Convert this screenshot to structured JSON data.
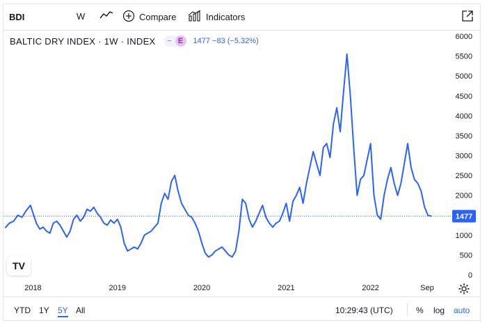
{
  "toolbar": {
    "symbol": "BDI",
    "interval": "W",
    "chart_type_icon": "line-chart-icon",
    "compare_label": "Compare",
    "indicators_label": "Indicators",
    "fullscreen_icon": "open-external-icon"
  },
  "legend": {
    "name": "BALTIC DRY INDEX · 1W · INDEX",
    "dash": "−",
    "badge": "E",
    "values": "1477  −83 (−5.32%)"
  },
  "chart_data": {
    "type": "line",
    "title": "",
    "xlabel": "",
    "ylabel": "",
    "ylim": [
      0,
      6000
    ],
    "y_ticks": [
      "0",
      "500",
      "1000",
      "1500",
      "2000",
      "2500",
      "3000",
      "3500",
      "4000",
      "4500",
      "5000",
      "5500",
      "6000"
    ],
    "x_ticks": [
      "2018",
      "2019",
      "2020",
      "2021",
      "2022",
      "Sep"
    ],
    "last_value_label": "1477",
    "last_value": 1477,
    "line_color": "#2962ff",
    "series": [
      {
        "x": [
          2017.67,
          2017.72,
          2017.77,
          2017.82,
          2017.87,
          2017.92,
          2017.97,
          2018.0,
          2018.04,
          2018.08,
          2018.12,
          2018.16,
          2018.2,
          2018.24,
          2018.28,
          2018.32,
          2018.36,
          2018.4,
          2018.44,
          2018.48,
          2018.52,
          2018.56,
          2018.6,
          2018.64,
          2018.68,
          2018.72,
          2018.76,
          2018.8,
          2018.84,
          2018.88,
          2018.92,
          2018.96,
          2019.0,
          2019.04,
          2019.08,
          2019.12,
          2019.16,
          2019.2,
          2019.24,
          2019.28,
          2019.32,
          2019.36,
          2019.4,
          2019.44,
          2019.48,
          2019.52,
          2019.56,
          2019.6,
          2019.64,
          2019.68,
          2019.72,
          2019.76,
          2019.8,
          2019.84,
          2019.88,
          2019.92,
          2019.96,
          2020.0,
          2020.04,
          2020.08,
          2020.12,
          2020.16,
          2020.2,
          2020.24,
          2020.28,
          2020.32,
          2020.36,
          2020.4,
          2020.44,
          2020.48,
          2020.52,
          2020.56,
          2020.6,
          2020.64,
          2020.68,
          2020.72,
          2020.76,
          2020.8,
          2020.84,
          2020.88,
          2020.92,
          2020.96,
          2021.0,
          2021.04,
          2021.08,
          2021.12,
          2021.16,
          2021.2,
          2021.24,
          2021.28,
          2021.32,
          2021.36,
          2021.4,
          2021.44,
          2021.48,
          2021.52,
          2021.56,
          2021.6,
          2021.64,
          2021.68,
          2021.72,
          2021.76,
          2021.8,
          2021.84,
          2021.88,
          2021.92,
          2021.96,
          2022.0,
          2022.04,
          2022.08,
          2022.12,
          2022.16,
          2022.2,
          2022.24,
          2022.28,
          2022.32,
          2022.36,
          2022.4,
          2022.44,
          2022.48,
          2022.52,
          2022.56,
          2022.6,
          2022.64,
          2022.68,
          2022.72
        ],
        "values": [
          1180,
          1300,
          1350,
          1500,
          1450,
          1620,
          1750,
          1550,
          1300,
          1150,
          1200,
          1100,
          1050,
          1300,
          1350,
          1250,
          1100,
          950,
          1100,
          1400,
          1500,
          1350,
          1450,
          1650,
          1600,
          1700,
          1550,
          1450,
          1300,
          1250,
          1380,
          1300,
          1400,
          1200,
          800,
          600,
          650,
          700,
          650,
          800,
          1000,
          1050,
          1100,
          1200,
          1300,
          1800,
          2050,
          1900,
          2350,
          2500,
          2100,
          1800,
          1650,
          1500,
          1450,
          1300,
          1100,
          800,
          550,
          450,
          500,
          600,
          650,
          700,
          600,
          500,
          450,
          600,
          1100,
          1900,
          1800,
          1400,
          1200,
          1350,
          1550,
          1750,
          1450,
          1300,
          1200,
          1300,
          1350,
          1550,
          1800,
          1350,
          1850,
          2000,
          2200,
          1800,
          2300,
          2700,
          3100,
          2800,
          2500,
          3200,
          3300,
          2950,
          3800,
          4200,
          3600,
          4600,
          5550,
          4500,
          3200,
          2000,
          2400,
          2500,
          2900,
          3300,
          2000,
          1500,
          1400,
          2000,
          2400,
          2700,
          2300,
          2000,
          2300,
          2800,
          3300,
          2700,
          2400,
          2300,
          2100,
          1700,
          1500,
          1477
        ]
      }
    ]
  },
  "logo": "TV",
  "bottom": {
    "ranges": [
      {
        "label": "YTD",
        "active": false
      },
      {
        "label": "1Y",
        "active": false
      },
      {
        "label": "5Y",
        "active": true
      },
      {
        "label": "All",
        "active": false
      }
    ],
    "time": "10:29:43 (UTC)",
    "percent_label": "%",
    "log_label": "log",
    "auto_label": "auto"
  }
}
